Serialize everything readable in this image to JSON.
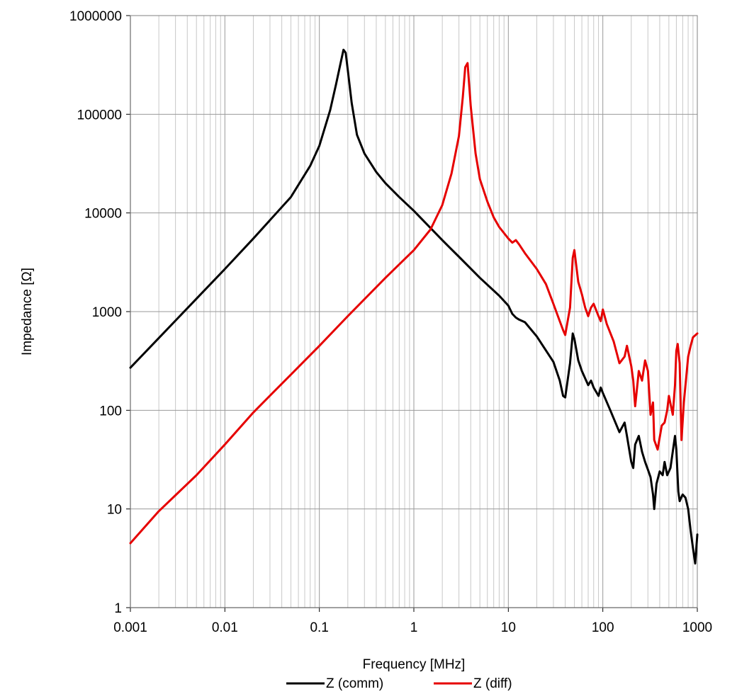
{
  "chart_data": {
    "type": "line",
    "title": "",
    "xlabel": "Frequency [MHz]",
    "ylabel": "Impedance [Ω]",
    "xscale": "log",
    "yscale": "log",
    "xlim": [
      0.001,
      1000
    ],
    "ylim": [
      1,
      1000000
    ],
    "grid": true,
    "legend_position": "bottom",
    "x_tick_labels": [
      "0.001",
      "0.01",
      "0.1",
      "1",
      "10",
      "100",
      "1000"
    ],
    "y_tick_labels": [
      "1",
      "10",
      "100",
      "1000",
      "10000",
      "100000",
      "1000000"
    ],
    "series": [
      {
        "name": "Z (comm)",
        "color": "#000000",
        "x": [
          0.001,
          0.002,
          0.005,
          0.01,
          0.02,
          0.05,
          0.08,
          0.1,
          0.13,
          0.15,
          0.17,
          0.18,
          0.19,
          0.2,
          0.22,
          0.25,
          0.3,
          0.4,
          0.5,
          0.7,
          1,
          2,
          3,
          5,
          8,
          10,
          11,
          12,
          13,
          15,
          20,
          30,
          35,
          38,
          40,
          45,
          48,
          50,
          55,
          60,
          70,
          75,
          80,
          90,
          95,
          100,
          120,
          150,
          170,
          180,
          200,
          210,
          220,
          240,
          260,
          280,
          300,
          320,
          340,
          350,
          370,
          400,
          430,
          450,
          480,
          520,
          580,
          600,
          630,
          650,
          700,
          750,
          800,
          850,
          900,
          950,
          1000
        ],
        "y": [
          270,
          540,
          1350,
          2700,
          5500,
          14500,
          30000,
          48000,
          110000,
          200000,
          350000,
          450000,
          420000,
          280000,
          130000,
          62000,
          40000,
          26000,
          20000,
          14500,
          10500,
          5300,
          3600,
          2200,
          1450,
          1150,
          950,
          870,
          830,
          780,
          560,
          310,
          200,
          140,
          135,
          300,
          600,
          530,
          320,
          250,
          180,
          200,
          170,
          140,
          170,
          150,
          100,
          60,
          75,
          55,
          30,
          26,
          45,
          55,
          38,
          30,
          25,
          21,
          14,
          10,
          18,
          24,
          22,
          30,
          22,
          26,
          55,
          40,
          15,
          12,
          14,
          13,
          10,
          6,
          4,
          2.8,
          5.5
        ]
      },
      {
        "name": "Z (diff)",
        "color": "#e60000",
        "x": [
          0.001,
          0.002,
          0.005,
          0.01,
          0.02,
          0.05,
          0.1,
          0.2,
          0.5,
          1,
          1.5,
          2,
          2.5,
          3,
          3.3,
          3.5,
          3.7,
          4,
          4.5,
          5,
          6,
          7,
          8,
          10,
          11,
          12,
          13,
          15,
          20,
          25,
          30,
          35,
          38,
          40,
          45,
          48,
          50,
          55,
          60,
          65,
          70,
          75,
          80,
          90,
          95,
          100,
          110,
          130,
          150,
          170,
          180,
          200,
          210,
          220,
          240,
          260,
          280,
          300,
          320,
          340,
          350,
          380,
          420,
          450,
          480,
          500,
          550,
          580,
          600,
          620,
          650,
          680,
          720,
          800,
          850,
          900,
          1000
        ],
        "y": [
          4.5,
          9.5,
          22,
          45,
          95,
          230,
          450,
          900,
          2200,
          4200,
          6800,
          12000,
          25000,
          60000,
          150000,
          300000,
          330000,
          120000,
          40000,
          22000,
          13000,
          9000,
          7200,
          5500,
          5000,
          5300,
          4800,
          3900,
          2700,
          1900,
          1200,
          800,
          650,
          580,
          1100,
          3500,
          4200,
          2000,
          1500,
          1100,
          900,
          1100,
          1200,
          900,
          800,
          1050,
          750,
          500,
          300,
          350,
          450,
          280,
          200,
          110,
          250,
          200,
          320,
          250,
          90,
          120,
          50,
          40,
          70,
          75,
          100,
          140,
          90,
          180,
          400,
          470,
          300,
          50,
          120,
          350,
          450,
          550,
          600
        ]
      }
    ]
  }
}
